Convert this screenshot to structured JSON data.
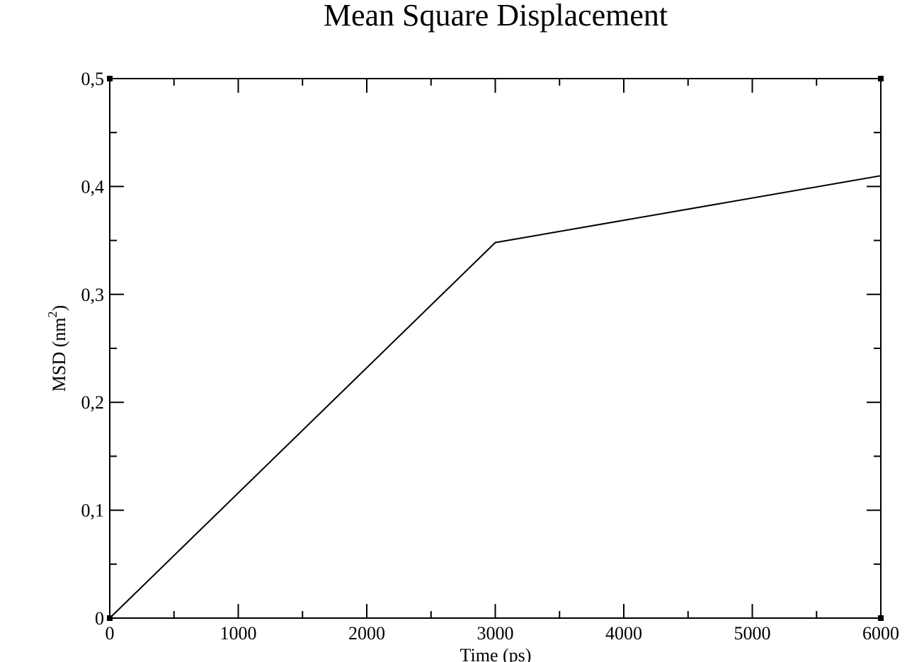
{
  "chart_data": {
    "type": "line",
    "title": "Mean Square Displacement",
    "xlabel": "Time (ps)",
    "ylabel": "MSD (nm",
    "ylabel_sup": "2",
    "ylabel_close": ")",
    "xlim": [
      0,
      6000
    ],
    "ylim": [
      0,
      0.5
    ],
    "x_ticks": [
      0,
      1000,
      2000,
      3000,
      4000,
      5000,
      6000
    ],
    "x_tick_labels": [
      "0",
      "1000",
      "2000",
      "3000",
      "4000",
      "5000",
      "6000"
    ],
    "y_ticks": [
      0,
      0.1,
      0.2,
      0.3,
      0.4,
      0.5
    ],
    "y_tick_labels": [
      "0",
      "0,1",
      "0,2",
      "0,3",
      "0,4",
      "0,5"
    ],
    "x_minor_step": 500,
    "y_minor_step": 0.05,
    "grid": false,
    "series": [
      {
        "x": [
          0,
          3000,
          6000
        ],
        "values": [
          0,
          0.348,
          0.41
        ]
      }
    ],
    "colors": {
      "line": "#000000",
      "axes": "#000000",
      "background": "#ffffff"
    }
  }
}
